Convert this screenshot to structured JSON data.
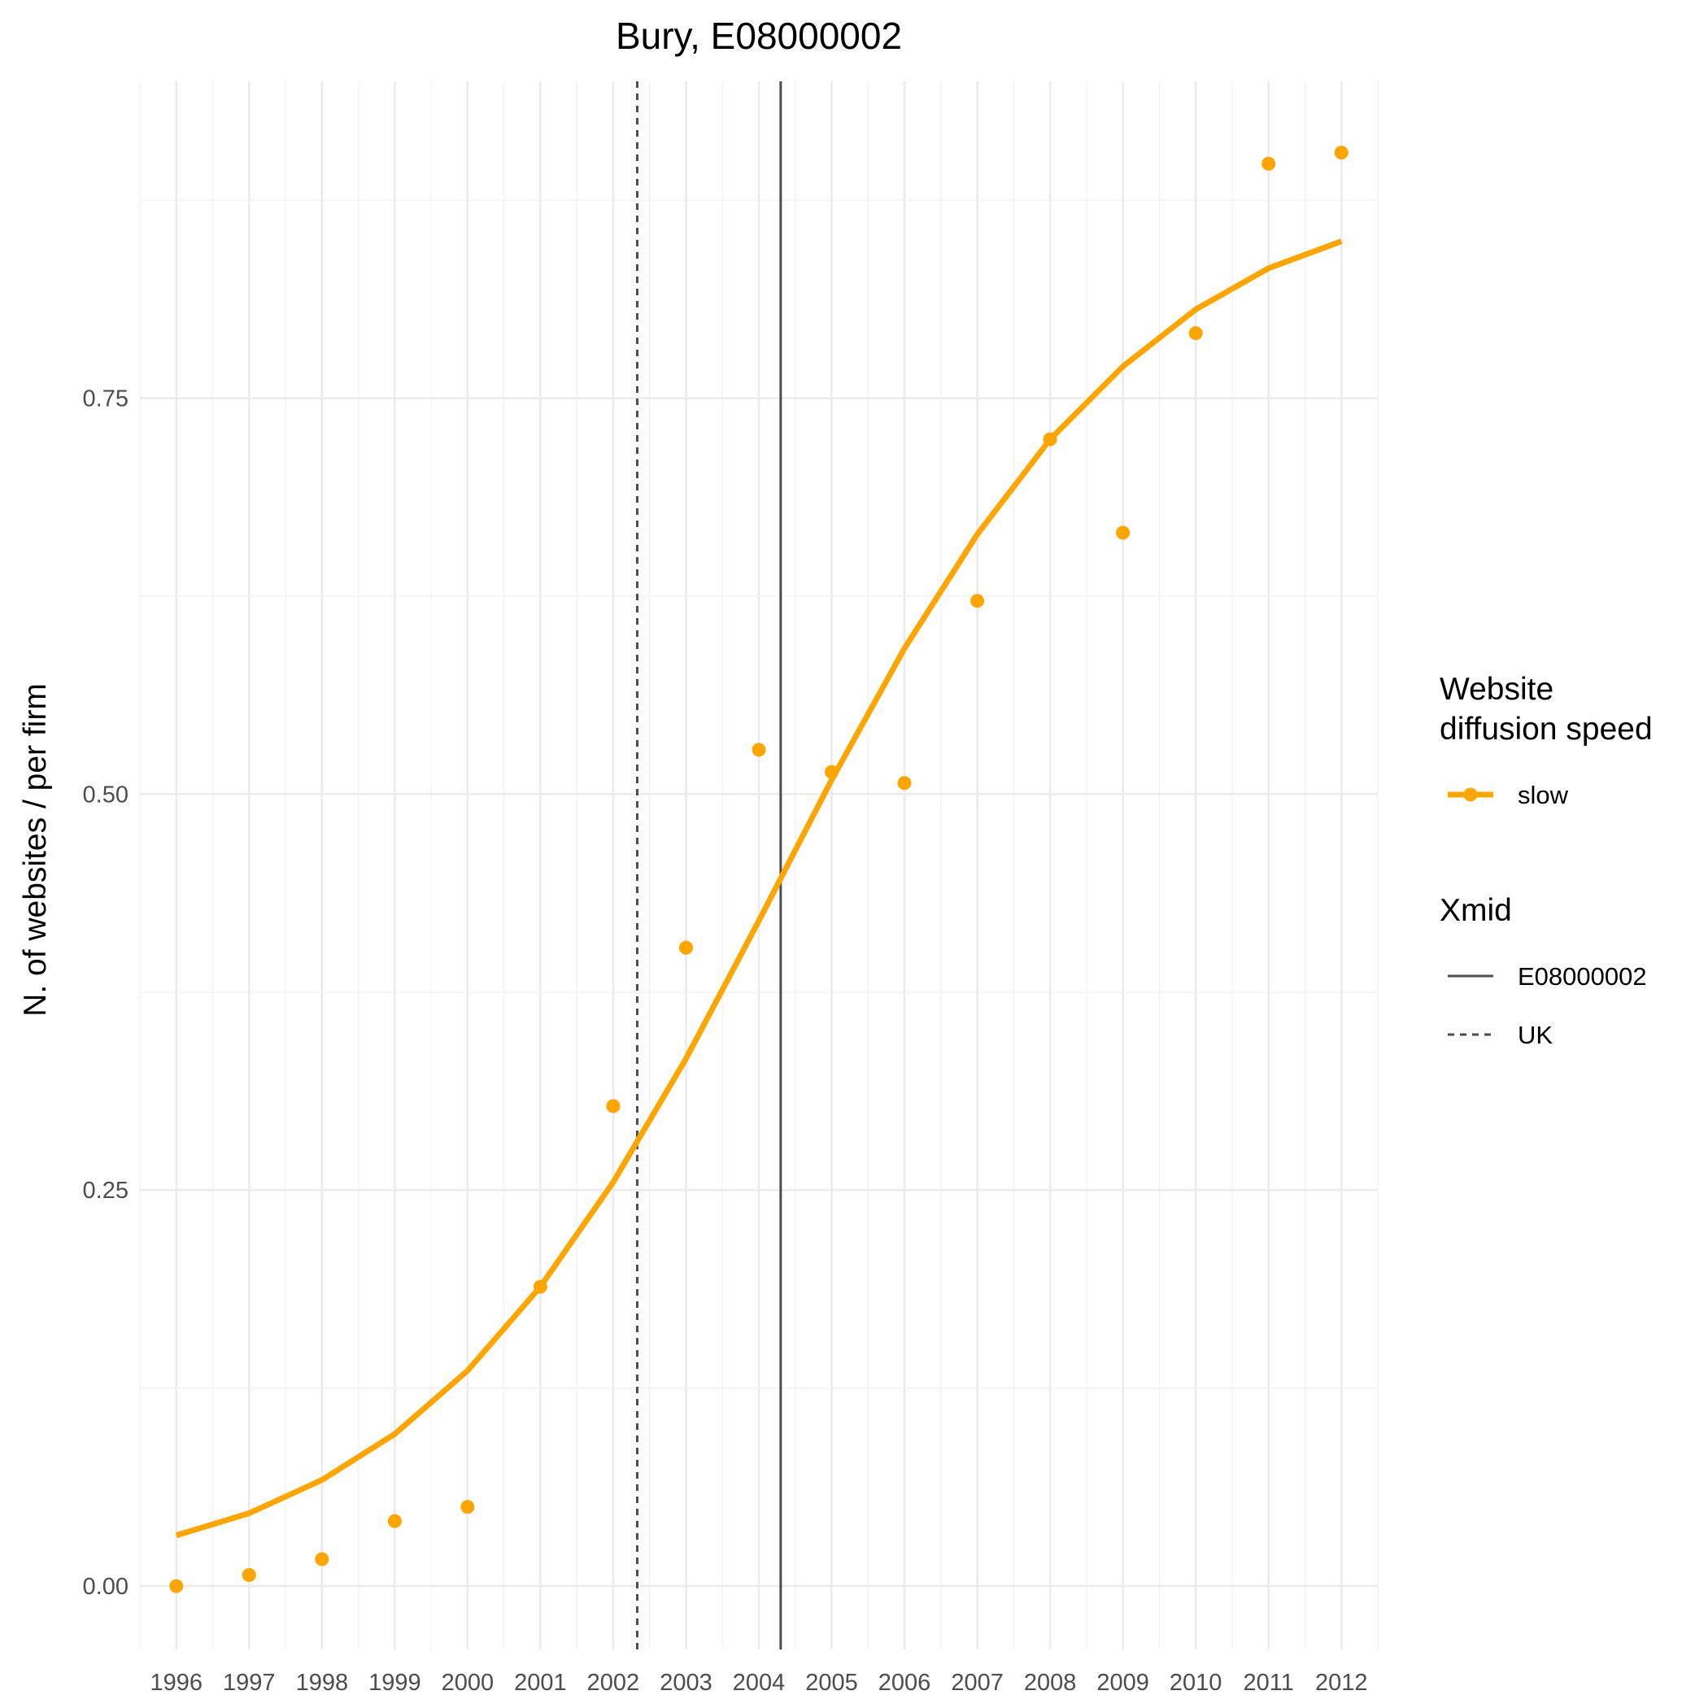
{
  "chart_data": {
    "type": "line",
    "title": "Bury, E08000002",
    "xlabel": "",
    "ylabel": "N. of websites / per firm",
    "x": [
      1996,
      1997,
      1998,
      1999,
      2000,
      2001,
      2002,
      2003,
      2004,
      2005,
      2006,
      2007,
      2008,
      2009,
      2010,
      2011,
      2012
    ],
    "x_tick_labels": [
      "1996",
      "1997",
      "1998",
      "1999",
      "2000",
      "2001",
      "2002",
      "2003",
      "2004",
      "2005",
      "2006",
      "2007",
      "2008",
      "2009",
      "2010",
      "2011",
      "2012"
    ],
    "xlim": [
      1995.5,
      2012.5
    ],
    "ylim": [
      -0.04,
      0.95
    ],
    "y_ticks": [
      0,
      0.25,
      0.5,
      0.75
    ],
    "y_tick_labels": [
      "0.00",
      "0.25",
      "0.50",
      "0.75"
    ],
    "grid": true,
    "series": [
      {
        "name": "slow",
        "kind": "fitted-line",
        "color": "#FFA500",
        "values": [
          0.032,
          0.046,
          0.067,
          0.096,
          0.136,
          0.189,
          0.255,
          0.333,
          0.42,
          0.509,
          0.592,
          0.664,
          0.724,
          0.77,
          0.806,
          0.832,
          0.849
        ]
      },
      {
        "name": "slow",
        "kind": "observed-points",
        "color": "#FFA500",
        "values": [
          0.0,
          0.007,
          0.017,
          0.041,
          0.05,
          0.189,
          0.303,
          0.403,
          0.528,
          0.514,
          0.507,
          0.622,
          0.724,
          0.665,
          0.791,
          0.898,
          0.905
        ]
      }
    ],
    "vlines": [
      {
        "name": "E08000002",
        "x": 2004.3,
        "style": "solid",
        "color": "#4d4d4d"
      },
      {
        "name": "UK",
        "x": 2002.33,
        "style": "dashed",
        "color": "#4d4d4d"
      }
    ],
    "legend": {
      "placement": "right",
      "groups": [
        {
          "title_lines": [
            "Website",
            "diffusion speed"
          ],
          "entries": [
            {
              "label": "slow",
              "kind": "line-point",
              "color": "#FFA500"
            }
          ]
        },
        {
          "title_lines": [
            "Xmid"
          ],
          "entries": [
            {
              "label": "E08000002",
              "kind": "solid",
              "color": "#4d4d4d"
            },
            {
              "label": "UK",
              "kind": "dashed",
              "color": "#4d4d4d"
            }
          ]
        }
      ]
    }
  }
}
